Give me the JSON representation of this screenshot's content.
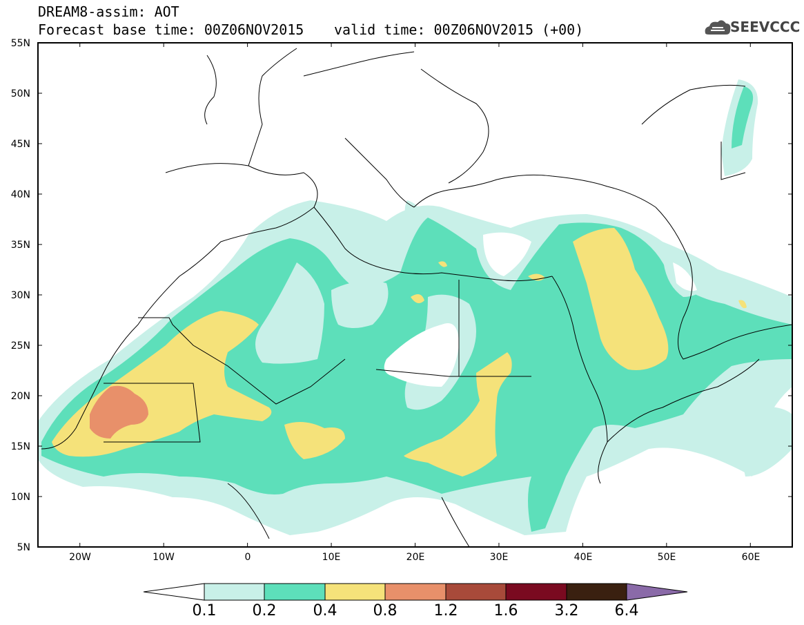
{
  "header": {
    "line1": "DREAM8-assim: AOT",
    "line2": "Forecast base time: 00Z06NOV2015",
    "line3": "valid time: 00Z06NOV2015 (+00)"
  },
  "logo": {
    "text": "SEEVCCC",
    "icon": "cloud-icon"
  },
  "map": {
    "lat_labels": [
      "55N",
      "50N",
      "45N",
      "40N",
      "35N",
      "30N",
      "25N",
      "20N",
      "15N",
      "10N",
      "5N"
    ],
    "lon_labels": [
      "20W",
      "10W",
      "0",
      "10E",
      "20E",
      "30E",
      "40E",
      "50E",
      "60E"
    ],
    "lon_range": [
      -25,
      65
    ],
    "lat_range": [
      5,
      55
    ]
  },
  "legend": {
    "thresholds": [
      "0.1",
      "0.2",
      "0.4",
      "0.8",
      "1.2",
      "1.6",
      "3.2",
      "6.4"
    ],
    "colors": [
      "#ffffff",
      "#c8f0e8",
      "#5ddfba",
      "#f5e27a",
      "#e8906a",
      "#a84a3a",
      "#7a0a20",
      "#3a2010",
      "#8a6aa8"
    ]
  }
}
